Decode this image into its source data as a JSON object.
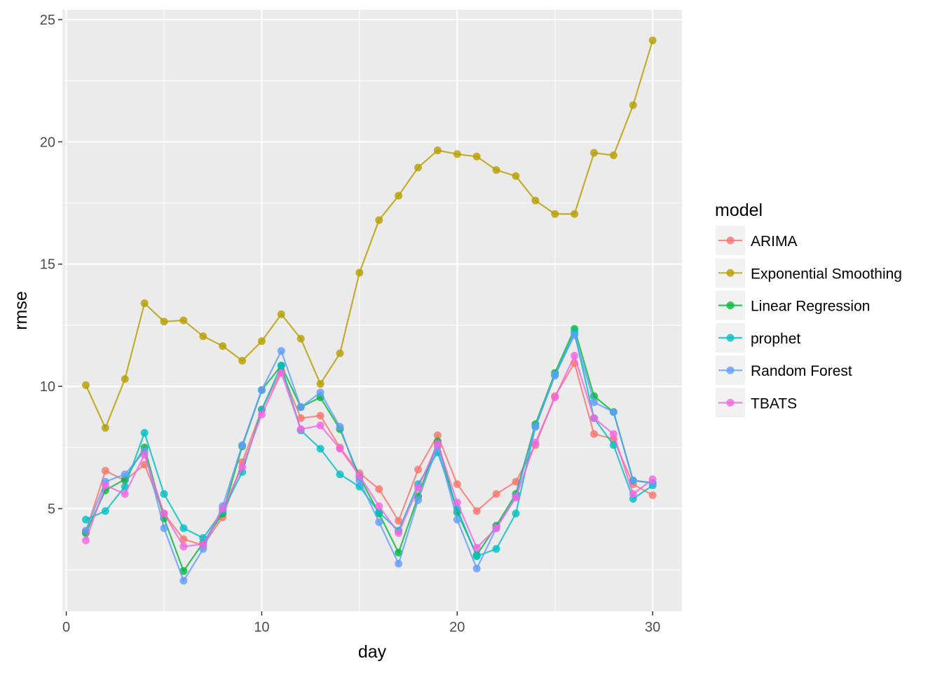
{
  "chart_data": {
    "type": "line",
    "xlabel": "day",
    "ylabel": "rmse",
    "xlim": [
      -0.2,
      31.5
    ],
    "ylim": [
      0.8,
      25.4
    ],
    "x_ticks": [
      0,
      10,
      20,
      30
    ],
    "y_ticks": [
      5,
      10,
      15,
      20,
      25
    ],
    "x_tick_labels": [
      "0",
      "10",
      "20",
      "30"
    ],
    "y_tick_labels": [
      "5",
      "10",
      "15",
      "20",
      "25"
    ],
    "grid": true,
    "legend_title": "model",
    "legend_position": "right",
    "x": [
      1,
      2,
      3,
      4,
      5,
      6,
      7,
      8,
      9,
      10,
      11,
      12,
      13,
      14,
      15,
      16,
      17,
      18,
      19,
      20,
      21,
      22,
      23,
      24,
      25,
      26,
      27,
      28,
      29,
      30
    ],
    "series": [
      {
        "name": "ARIMA",
        "color": "#F8766D",
        "values": [
          4.05,
          6.55,
          6.15,
          6.8,
          4.8,
          3.75,
          3.5,
          4.65,
          6.9,
          9.05,
          10.65,
          8.7,
          8.8,
          7.5,
          6.45,
          5.8,
          4.5,
          6.6,
          8.0,
          6.0,
          4.9,
          5.6,
          6.1,
          7.6,
          9.6,
          10.95,
          8.05,
          7.85,
          6.0,
          5.55
        ]
      },
      {
        "name": "Exponential Smoothing",
        "color": "#B79F00",
        "values": [
          10.05,
          8.3,
          10.3,
          13.4,
          12.65,
          12.7,
          12.05,
          11.65,
          11.05,
          11.85,
          12.95,
          11.95,
          10.1,
          11.35,
          14.65,
          16.8,
          17.8,
          18.95,
          19.65,
          19.5,
          19.4,
          18.85,
          18.6,
          17.6,
          17.05,
          17.05,
          19.55,
          19.45,
          21.5,
          24.15
        ]
      },
      {
        "name": "Linear Regression",
        "color": "#00BA38",
        "values": [
          4.0,
          5.75,
          6.2,
          7.5,
          4.6,
          2.45,
          3.6,
          4.8,
          7.55,
          9.85,
          10.85,
          9.15,
          9.55,
          8.25,
          6.3,
          4.8,
          3.2,
          5.5,
          7.75,
          4.85,
          3.1,
          4.3,
          5.6,
          8.45,
          10.55,
          12.35,
          9.6,
          8.95,
          6.15,
          6.05
        ]
      },
      {
        "name": "prophet",
        "color": "#00BFC4",
        "values": [
          4.55,
          4.9,
          5.9,
          8.1,
          5.6,
          4.2,
          3.8,
          4.9,
          6.5,
          9.05,
          10.85,
          8.2,
          7.45,
          6.4,
          5.9,
          4.85,
          4.1,
          6.0,
          7.3,
          5.0,
          3.05,
          3.35,
          4.8,
          8.35,
          10.45,
          12.2,
          8.7,
          7.6,
          5.4,
          5.95
        ]
      },
      {
        "name": "Random Forest",
        "color": "#619CFF",
        "values": [
          4.1,
          6.1,
          6.4,
          7.35,
          4.2,
          2.05,
          3.35,
          5.1,
          7.6,
          9.85,
          11.45,
          9.15,
          9.75,
          8.35,
          6.15,
          4.45,
          2.75,
          5.35,
          7.55,
          4.55,
          2.55,
          4.2,
          5.5,
          8.35,
          10.45,
          12.1,
          9.35,
          8.95,
          6.15,
          6.05
        ]
      },
      {
        "name": "TBATS",
        "color": "#F564E3",
        "values": [
          3.7,
          5.95,
          5.6,
          7.2,
          4.8,
          3.45,
          3.55,
          5.0,
          6.7,
          8.85,
          10.55,
          8.25,
          8.4,
          7.45,
          6.35,
          5.1,
          4.0,
          5.85,
          7.65,
          5.25,
          3.4,
          4.2,
          5.45,
          7.7,
          9.55,
          11.25,
          8.7,
          8.05,
          5.6,
          6.2
        ]
      }
    ]
  }
}
